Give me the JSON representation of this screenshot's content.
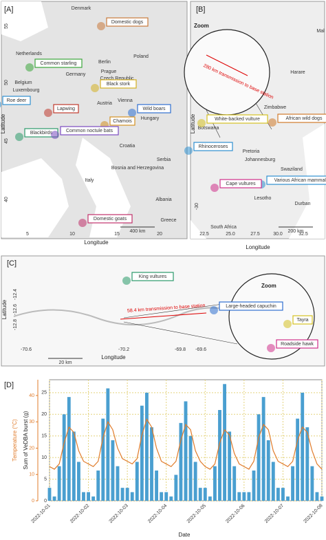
{
  "panels": [
    {
      "label": "[A]",
      "x_label": "Longitude",
      "y_label": "Latitude",
      "x_ticks": [
        "5",
        "10",
        "15",
        "20"
      ],
      "y_ticks": [
        "55",
        "50",
        "45",
        "40"
      ],
      "scale": "400 km",
      "callouts": [
        {
          "text": "Domestic dogs",
          "color": "#c8793a"
        },
        {
          "text": "Common starling",
          "color": "#3aa63a"
        },
        {
          "text": "Lapwing",
          "color": "#c0392b"
        },
        {
          "text": "Black stork",
          "color": "#d4b020"
        },
        {
          "text": "Roe deer",
          "color": "#2e8fd0"
        },
        {
          "text": "Wild boars",
          "color": "#2e6fd0"
        },
        {
          "text": "Chamois",
          "color": "#d49020"
        },
        {
          "text": "Blackbirds",
          "color": "#2a9a6a"
        },
        {
          "text": "Common noctule bats",
          "color": "#7a4ac0"
        },
        {
          "text": "Domestic goats",
          "color": "#c0306a"
        }
      ],
      "places": [
        "Denmark",
        "Netherlands",
        "Belgium",
        "Luxembourg",
        "Germany",
        "Poland",
        "Czech Republic",
        "Austria",
        "Hungary",
        "Croatia",
        "Italy",
        "Serbia",
        "Albania",
        "Greece",
        "Bosnia and Herzegovina",
        "Prague",
        "Berlin",
        "Vienna"
      ]
    },
    {
      "label": "[B]",
      "x_label": "Longitude",
      "y_label": "Latitude",
      "x_ticks": [
        "22.5",
        "25.0",
        "27.5",
        "30.0",
        "32.5"
      ],
      "y_ticks": [
        "-30"
      ],
      "scale": "200 km",
      "zoom": "Zoom",
      "transmission": "280 km transmission to base station",
      "callouts": [
        {
          "text": "White-backed vulture",
          "color": "#d4c020"
        },
        {
          "text": "African wild dogs",
          "color": "#d07a2a"
        },
        {
          "text": "Rhinoceroses",
          "color": "#2e8fd0"
        },
        {
          "text": "Various African mammals",
          "color": "#2e8fd0"
        },
        {
          "text": "Cape vultures",
          "color": "#d0308a"
        }
      ],
      "places": [
        "Zimbabwe",
        "Harare",
        "Botswana",
        "Pretoria",
        "Johannesburg",
        "Swaziland",
        "Lesotho",
        "Durban",
        "South Africa",
        "Mal"
      ]
    },
    {
      "label": "[C]",
      "x_label": "Longitude",
      "y_label": "Latitude",
      "x_ticks": [
        "-70.6",
        "-70.2",
        "-69.8",
        "-69.6"
      ],
      "y_ticks": [
        "-12.4",
        "-12.6",
        "-12.8"
      ],
      "scale": "20 km",
      "zoom": "Zoom",
      "transmission": "58.4 km transmission to base station",
      "callouts": [
        {
          "text": "King vultures",
          "color": "#2a9a6a"
        },
        {
          "text": "Large-headed capuchin",
          "color": "#2e6fd0"
        },
        {
          "text": "Tayra",
          "color": "#d4c020"
        },
        {
          "text": "Roadside hawk",
          "color": "#d0308a"
        }
      ],
      "places": []
    }
  ],
  "chart_data": {
    "type": "bar_line",
    "panel_label": "[D]",
    "x_label": "Date",
    "y_label": "Sum of VeDBA burst (g)",
    "y2_label": "Temperature (°C)",
    "x": [
      0,
      0.125,
      0.25,
      0.375,
      0.5,
      0.625,
      0.75,
      0.875,
      1,
      1.125,
      1.25,
      1.375,
      1.5,
      1.625,
      1.75,
      1.875,
      2,
      2.125,
      2.25,
      2.375,
      2.5,
      2.625,
      2.75,
      2.875,
      3,
      3.125,
      3.25,
      3.375,
      3.5,
      3.625,
      3.75,
      3.875,
      4,
      4.125,
      4.25,
      4.375,
      4.5,
      4.625,
      4.75,
      4.875,
      5,
      5.125,
      5.25,
      5.375,
      5.5,
      5.625,
      5.75,
      5.875,
      6,
      6.125,
      6.25,
      6.375,
      6.5,
      6.625,
      6.75,
      6.875,
      7
    ],
    "xlim": [
      0,
      7
    ],
    "xticks": [
      {
        "value": 0,
        "label": "2022-10-01"
      },
      {
        "value": 1,
        "label": "2022-10-02"
      },
      {
        "value": 2,
        "label": "2022-10-03"
      },
      {
        "value": 3,
        "label": "2022-10-04"
      },
      {
        "value": 4,
        "label": "2022-10-05"
      },
      {
        "value": 5,
        "label": "2022-10-06"
      },
      {
        "value": 6,
        "label": "2022-10-07"
      },
      {
        "value": 7,
        "label": "2022-10-08"
      }
    ],
    "ylim": [
      0,
      28
    ],
    "yticks": [
      0,
      5,
      10,
      15,
      20,
      25
    ],
    "y2lim": [
      0,
      46
    ],
    "y2ticks": [
      0,
      10,
      20,
      30,
      40
    ],
    "grid": true,
    "series": [
      {
        "name": "Sum of VeDBA burst (g)",
        "color": "#4a9fd0",
        "values": [
          3,
          1,
          8,
          20,
          24,
          16,
          9,
          2,
          2,
          1,
          7,
          19,
          26,
          14,
          8,
          3,
          3,
          2,
          9,
          22,
          25,
          17,
          7,
          2,
          2,
          1,
          6,
          18,
          23,
          15,
          9,
          3,
          3,
          1,
          8,
          21,
          27,
          16,
          8,
          2,
          2,
          2,
          7,
          20,
          24,
          14,
          9,
          3,
          3,
          1,
          8,
          19,
          25,
          17,
          8,
          2,
          1
        ]
      },
      {
        "name": "Temperature (°C)",
        "color": "#e07b2a",
        "axis": "y2",
        "values": [
          13,
          12,
          14,
          22,
          28,
          26,
          19,
          15,
          14,
          13,
          15,
          24,
          30,
          27,
          20,
          16,
          15,
          14,
          16,
          25,
          31,
          28,
          20,
          15,
          14,
          13,
          15,
          23,
          29,
          27,
          19,
          15,
          13,
          12,
          14,
          22,
          27,
          25,
          18,
          14,
          13,
          12,
          15,
          24,
          29,
          27,
          19,
          15,
          14,
          13,
          15,
          23,
          28,
          26,
          19,
          14,
          12
        ]
      }
    ]
  }
}
